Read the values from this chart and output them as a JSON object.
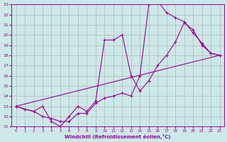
{
  "xlabel": "Windchill (Refroidissement éolien,°C)",
  "bg_color": "#cce8e8",
  "line_color": "#990099",
  "grid_color": "#aaaaaa",
  "xlim": [
    -0.5,
    23.5
  ],
  "ylim": [
    11,
    23
  ],
  "xticks": [
    0,
    1,
    2,
    3,
    4,
    5,
    6,
    7,
    8,
    9,
    10,
    11,
    12,
    13,
    14,
    15,
    16,
    17,
    18,
    19,
    20,
    21,
    22,
    23
  ],
  "yticks": [
    11,
    12,
    13,
    14,
    15,
    16,
    17,
    18,
    19,
    20,
    21,
    22,
    23
  ],
  "line1_x": [
    0,
    1,
    2,
    3,
    4,
    5,
    6,
    7,
    8,
    9,
    10,
    11,
    12,
    13,
    14,
    15,
    16,
    17,
    18,
    19,
    20,
    21,
    22,
    23
  ],
  "line1_y": [
    13,
    12.7,
    12.5,
    12,
    11.8,
    11.5,
    11.5,
    12.3,
    12.3,
    13.3,
    13.8,
    14.0,
    14.3,
    14.0,
    16.0,
    23.0,
    23.3,
    22.2,
    21.7,
    21.3,
    20.2,
    19.2,
    18.2,
    18.0
  ],
  "line2_x": [
    0,
    1,
    2,
    3,
    4,
    5,
    6,
    7,
    8,
    9,
    10,
    11,
    12,
    13,
    14,
    15,
    16,
    17,
    18,
    19,
    20,
    21,
    22,
    23
  ],
  "line2_y": [
    13,
    12.7,
    12.5,
    13.0,
    11.5,
    11.0,
    12.0,
    13.0,
    12.5,
    13.5,
    19.5,
    19.5,
    20.0,
    16.0,
    14.5,
    15.5,
    17.0,
    18.0,
    19.3,
    21.2,
    20.5,
    19.0,
    18.2,
    18.0
  ],
  "line3_x": [
    0,
    23
  ],
  "line3_y": [
    13,
    18
  ]
}
